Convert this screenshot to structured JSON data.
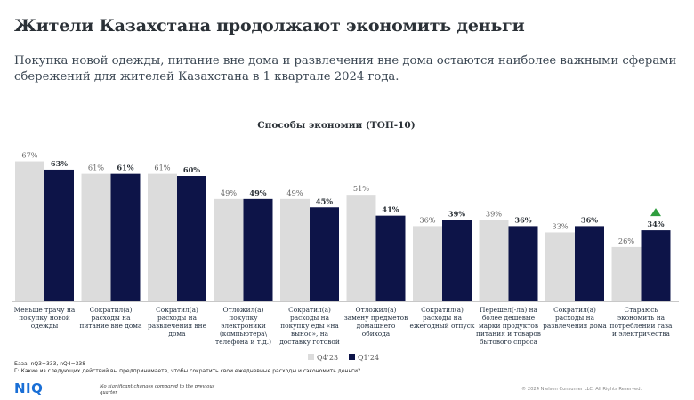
{
  "header": {
    "title": "Жители Казахстана продолжают экономить деньги",
    "subtitle": "Покупка новой одежды, питание вне дома и развлечения вне дома остаются наиболее важными сферами сбережений для жителей Казахстана в 1 квартале 2024 года."
  },
  "chart_data": {
    "type": "bar",
    "title": "Способы экономии (ТОП-10)",
    "categories": [
      [
        "Меньше трачу на",
        "покупку новой",
        "одежды"
      ],
      [
        "Сократил(а)",
        "расходы на",
        "питание вне дома"
      ],
      [
        "Сократил(а)",
        "расходы на",
        "развлечения вне",
        "дома"
      ],
      [
        "Отложил(а)",
        "покупку",
        "электроники",
        "(компьютера\\",
        "телефона и т.д.)"
      ],
      [
        "Сократил(а)",
        "расходы на",
        "покупку еды «на",
        "вынос», на",
        "доставку готовой"
      ],
      [
        "Отложил(а)",
        "замену предметов",
        "домашнего",
        "обихода"
      ],
      [
        "Сократил(а)",
        "расходы на",
        "ежегодный отпуск"
      ],
      [
        "Перешел(-ла) на",
        "более дешевые",
        "марки продуктов",
        "питания и товаров",
        "бытового спроса"
      ],
      [
        "Сократил(а)",
        "расходы на",
        "развлечения дома"
      ],
      [
        "Стараюсь",
        "экономить на",
        "потреблении газа",
        "и электричества"
      ]
    ],
    "series": [
      {
        "name": "Q4'23",
        "color": "#dcdcdc",
        "values": [
          67,
          61,
          61,
          49,
          49,
          51,
          36,
          39,
          33,
          26
        ],
        "labels": [
          "67%",
          "61%",
          "61%",
          "49%",
          "49%",
          "51%",
          "36%",
          "39%",
          "33%",
          "26%"
        ]
      },
      {
        "name": "Q1'24",
        "color": "#0d1448",
        "values": [
          63,
          61,
          60,
          49,
          45,
          41,
          39,
          36,
          36,
          34
        ],
        "labels": [
          "63%",
          "61%",
          "60%",
          "49%",
          "45%",
          "41%",
          "39%",
          "36%",
          "36%",
          "34%"
        ]
      }
    ],
    "ylim": [
      0,
      100
    ],
    "annotations": [
      {
        "category_index": 9,
        "series": "Q1'24",
        "marker": "up-triangle",
        "color": "#2e9e3e"
      }
    ],
    "legend": "bottom-right"
  },
  "footer": {
    "base": "База: nQ3=333, nQ4=338",
    "question": "Г: Какие из следующих действий вы предпринимаете, чтобы сократить свои ежедневные расходы и сэкономить деньги?",
    "logo": "NIQ",
    "no_change_note": "No significant changes compared to the previous quarter",
    "copyright": "© 2024 Nielsen Consumer LLC. All Rights Reserved."
  }
}
